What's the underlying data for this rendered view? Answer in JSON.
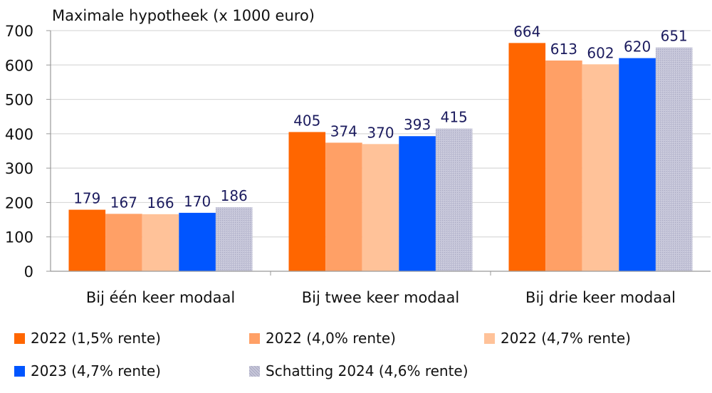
{
  "chart_data": {
    "type": "bar",
    "title": "Maximale hypotheek (x 1000 euro)",
    "xlabel": "",
    "ylabel": "",
    "ylim": [
      0,
      700
    ],
    "yticks": [
      0,
      100,
      200,
      300,
      400,
      500,
      600,
      700
    ],
    "grid": true,
    "legend_position": "bottom",
    "categories": [
      "Bij één keer modaal",
      "Bij twee keer modaal",
      "Bij drie keer modaal"
    ],
    "series": [
      {
        "name": "2022 (1,5% rente)",
        "color": "#FF6600",
        "values": [
          179,
          405,
          664
        ]
      },
      {
        "name": "2022 (4,0% rente)",
        "color": "#FFA066",
        "values": [
          167,
          374,
          613
        ]
      },
      {
        "name": "2022 (4,7% rente)",
        "color": "#FFC299",
        "values": [
          166,
          370,
          602
        ]
      },
      {
        "name": "2023 (4,7% rente)",
        "color": "#0055FF",
        "values": [
          170,
          393,
          620
        ]
      },
      {
        "name": "Schatting 2024 (4,6% rente)",
        "color": "#B9B9D0",
        "pattern": "hatched",
        "values": [
          186,
          415,
          651
        ]
      }
    ],
    "label_color": "#1B1B5E"
  }
}
